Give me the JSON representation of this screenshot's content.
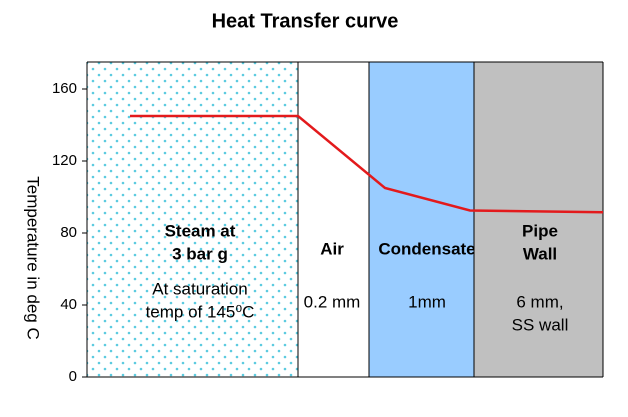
{
  "chart_data": {
    "type": "line",
    "title": "Heat Transfer curve",
    "y_label": "Temperature in deg C",
    "ylim": [
      0,
      175
    ],
    "yticks": [
      0,
      40,
      80,
      120,
      160
    ],
    "regions": [
      {
        "bold": [
          "Steam at",
          "3 bar g"
        ],
        "detail": [
          "At saturation",
          "temp of 145⁰C"
        ],
        "color": "#5ccbe0",
        "pattern": "dots"
      },
      {
        "bold": [
          "Air"
        ],
        "detail": [
          "0.2 mm"
        ],
        "color": "#ffffff"
      },
      {
        "bold": [
          "Condensate"
        ],
        "detail": [
          "1mm"
        ],
        "color": "#99ccff"
      },
      {
        "bold": [
          "Pipe",
          "Wall"
        ],
        "detail": [
          "6 mm,",
          "SS wall"
        ],
        "color": "#c0c0c0"
      }
    ],
    "series": [
      {
        "color": "#e31a1c",
        "values": [
          145,
          145,
          105,
          92.5,
          91.5
        ]
      }
    ]
  }
}
